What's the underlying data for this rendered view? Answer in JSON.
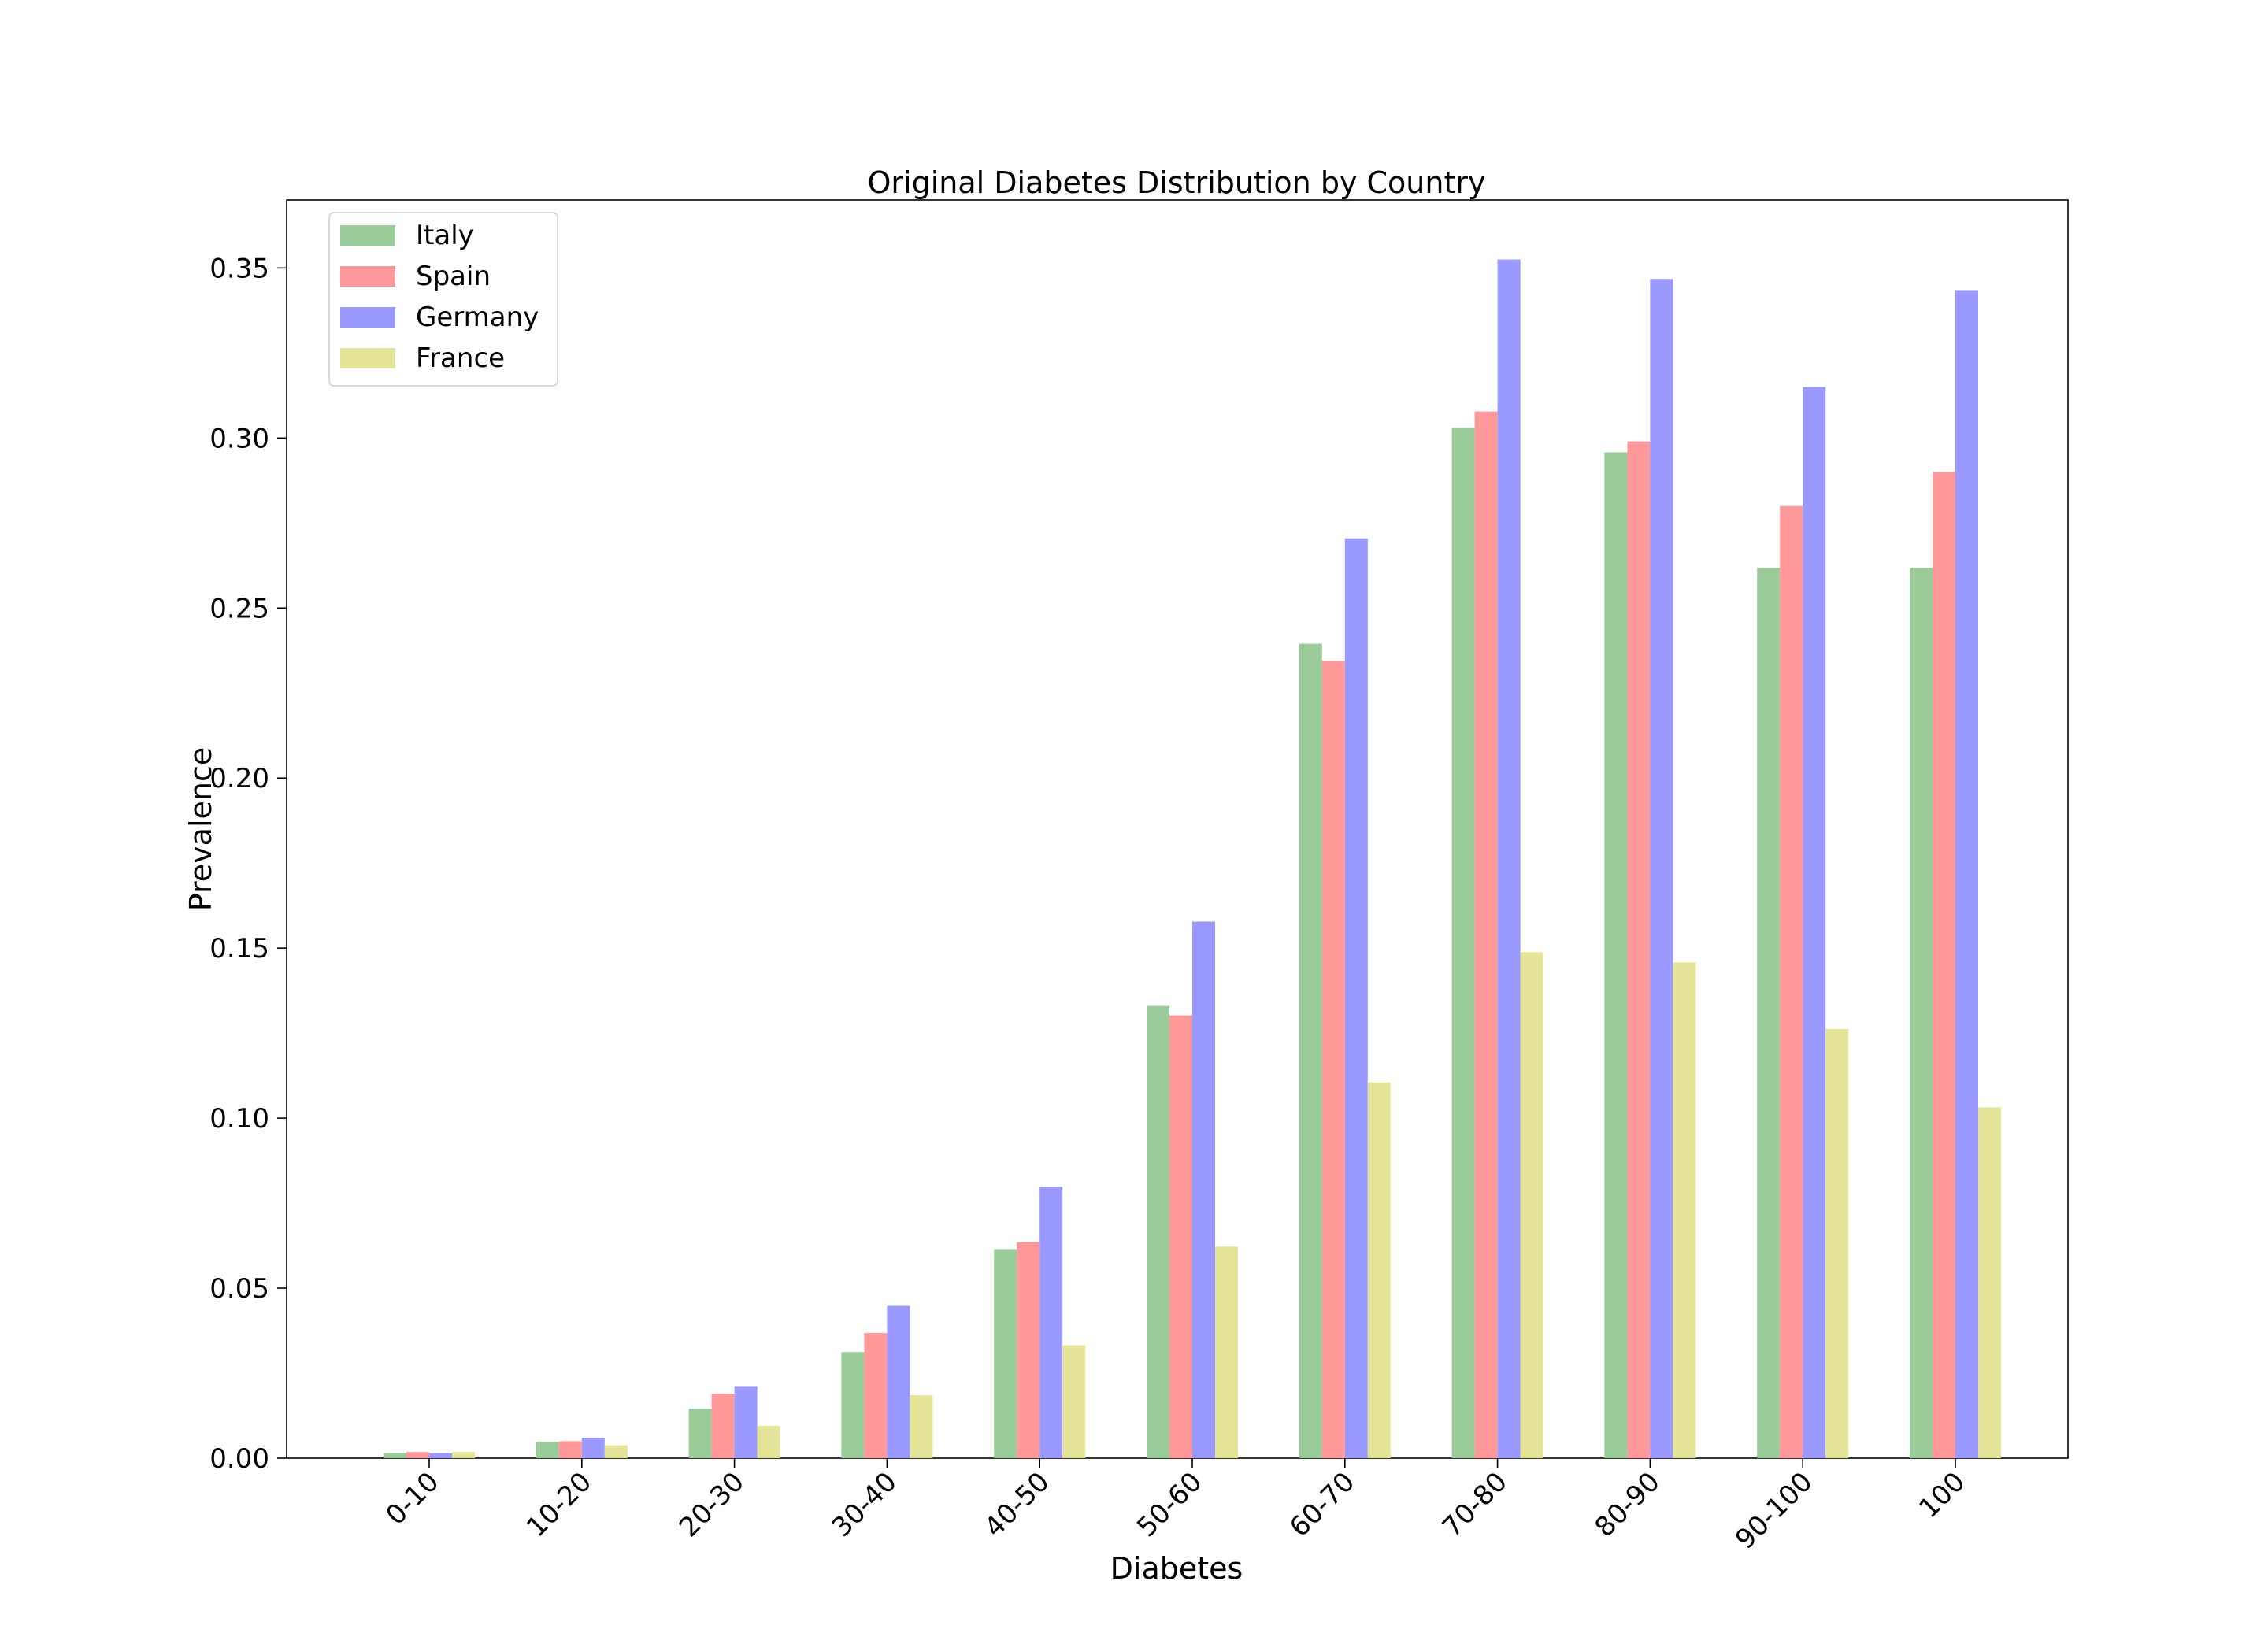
{
  "chart_data": {
    "type": "bar",
    "title": "Original Diabetes Distribution by Country",
    "xlabel": "Diabetes",
    "ylabel": "Prevalence",
    "ylim": [
      0,
      0.37
    ],
    "yticks": [
      "0.00",
      "0.05",
      "0.10",
      "0.15",
      "0.20",
      "0.25",
      "0.30",
      "0.35"
    ],
    "ytick_values": [
      0,
      0.05,
      0.1,
      0.15,
      0.2,
      0.25,
      0.3,
      0.35
    ],
    "categories": [
      "0-10",
      "10-20",
      "20-30",
      "30-40",
      "40-50",
      "50-60",
      "60-70",
      "70-80",
      "80-90",
      "90-100",
      "100"
    ],
    "grid": false,
    "legend_position": "upper-left",
    "series": [
      {
        "name": "Italy",
        "color": "#99cc99",
        "values": [
          0.0015,
          0.0048,
          0.0145,
          0.0312,
          0.0615,
          0.133,
          0.2395,
          0.303,
          0.2958,
          0.2618,
          0.2618
        ]
      },
      {
        "name": "Spain",
        "color": "#ff9999",
        "values": [
          0.0018,
          0.005,
          0.019,
          0.0368,
          0.0635,
          0.1302,
          0.2345,
          0.3078,
          0.299,
          0.28,
          0.29
        ]
      },
      {
        "name": "Germany",
        "color": "#9999ff",
        "values": [
          0.0015,
          0.006,
          0.0212,
          0.0448,
          0.0798,
          0.1578,
          0.2705,
          0.3525,
          0.3468,
          0.315,
          0.3435
        ]
      },
      {
        "name": "France",
        "color": "#e5e599",
        "values": [
          0.0018,
          0.0038,
          0.0095,
          0.0185,
          0.0332,
          0.0622,
          0.1105,
          0.1488,
          0.1458,
          0.1262,
          0.1032
        ]
      }
    ]
  }
}
